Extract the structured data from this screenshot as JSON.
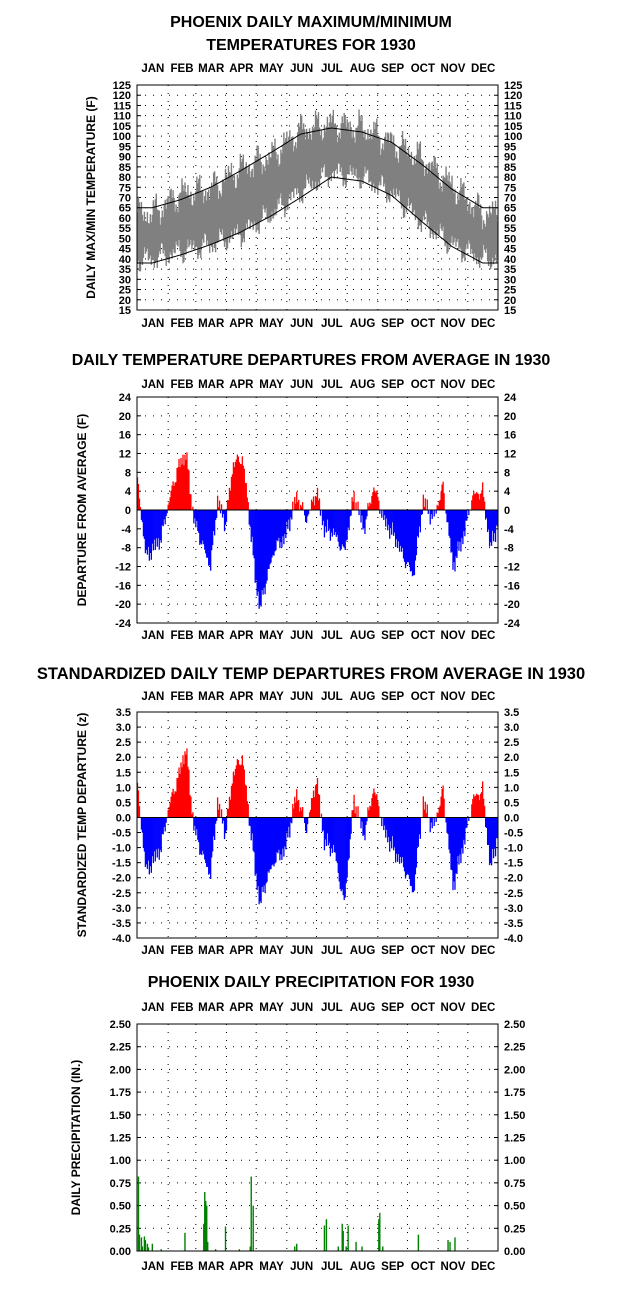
{
  "months": [
    "JAN",
    "FEB",
    "MAR",
    "APR",
    "MAY",
    "JUN",
    "JUL",
    "AUG",
    "SEP",
    "OCT",
    "NOV",
    "DEC"
  ],
  "chart_data": [
    {
      "type": "area",
      "title_lines": [
        "PHOENIX DAILY MAXIMUM/MINIMUM",
        "TEMPERATURES FOR 1930"
      ],
      "ylabel": "DAILY MAX/MIN TEMPERATURE  (F)",
      "ylim": [
        15,
        125
      ],
      "yticks": [
        "125",
        "120",
        "115",
        "110",
        "105",
        "100",
        "95",
        "90",
        "85",
        "80",
        "75",
        "70",
        "65",
        "60",
        "55",
        "50",
        "45",
        "40",
        "35",
        "30",
        "25",
        "20",
        "15"
      ],
      "grid": true,
      "colors": {
        "daily_range": "#808080",
        "normals": "#000000"
      },
      "normal_max_monthly": [
        65,
        69,
        75,
        83,
        92,
        101,
        104,
        102,
        97,
        86,
        74,
        65
      ],
      "normal_min_monthly": [
        38,
        42,
        47,
        53,
        61,
        70,
        80,
        78,
        71,
        58,
        46,
        38
      ],
      "daily_max_monthly": [
        62,
        72,
        74,
        84,
        90,
        103,
        106,
        104,
        97,
        89,
        76,
        62
      ],
      "daily_min_monthly": [
        40,
        44,
        47,
        52,
        62,
        73,
        82,
        80,
        72,
        58,
        47,
        40
      ]
    },
    {
      "type": "bar",
      "title": "DAILY TEMPERATURE DEPARTURES FROM AVERAGE IN 1930",
      "ylabel": "DEPARTURE FROM AVERAGE  (F)",
      "ylim": [
        -24,
        24
      ],
      "yticks": [
        "24",
        "20",
        "16",
        "12",
        "8",
        "4",
        "0",
        "-4",
        "-8",
        "-12",
        "-16",
        "-20",
        "-24"
      ],
      "grid": true,
      "colors": {
        "positive": "#ff0000",
        "negative": "#0000ff"
      },
      "anchors_day": [
        1,
        10,
        25,
        33,
        42,
        50,
        58,
        66,
        75,
        82,
        90,
        98,
        107,
        112,
        120,
        125,
        130,
        140,
        150,
        162,
        172,
        182,
        190,
        200,
        210,
        220,
        230,
        240,
        250,
        262,
        270,
        280,
        290,
        300,
        310,
        320,
        330,
        340,
        350,
        358,
        365
      ],
      "anchors_value": [
        6,
        -10,
        -6,
        2,
        9,
        12,
        -2,
        -7,
        -12,
        2,
        -3,
        10,
        11,
        3,
        -14,
        -21,
        -16,
        -8,
        -6,
        3,
        -2,
        4,
        -4,
        -5,
        -9,
        3,
        -4,
        5,
        -2,
        -6,
        -10,
        -14,
        2,
        -2,
        5,
        -12,
        -6,
        3,
        4,
        -8,
        -3
      ]
    },
    {
      "type": "bar",
      "title": "STANDARDIZED DAILY TEMP DEPARTURES FROM AVERAGE IN 1930",
      "ylabel": "STANDARDIZED TEMP DEPARTURE  (z)",
      "ylim": [
        -4.0,
        3.5
      ],
      "yticks": [
        "3.5",
        "3.0",
        "2.5",
        "2.0",
        "1.5",
        "1.0",
        "0.5",
        "0.0",
        "-0.5",
        "-1.0",
        "-1.5",
        "-2.0",
        "-2.5",
        "-3.0",
        "-3.5",
        "-4.0"
      ],
      "grid": true,
      "colors": {
        "positive": "#ff0000",
        "negative": "#0000ff"
      },
      "anchors_day": [
        1,
        10,
        25,
        33,
        42,
        50,
        58,
        66,
        75,
        82,
        90,
        98,
        107,
        112,
        120,
        125,
        130,
        140,
        150,
        162,
        172,
        182,
        190,
        200,
        210,
        220,
        230,
        240,
        250,
        262,
        270,
        280,
        290,
        300,
        310,
        320,
        330,
        340,
        350,
        358,
        365
      ],
      "anchors_value": [
        1.0,
        -1.8,
        -1.0,
        0.4,
        1.3,
        2.3,
        -0.3,
        -1.2,
        -1.9,
        0.5,
        -0.5,
        1.5,
        2.0,
        0.6,
        -1.7,
        -2.9,
        -2.2,
        -1.4,
        -1.1,
        0.8,
        -0.4,
        1.3,
        -0.8,
        -1.1,
        -2.9,
        0.6,
        -0.6,
        1.0,
        -0.4,
        -1.2,
        -1.6,
        -2.5,
        0.5,
        -0.4,
        0.9,
        -2.3,
        -1.0,
        0.6,
        0.9,
        -1.7,
        -0.6
      ]
    },
    {
      "type": "bar",
      "title": "PHOENIX DAILY PRECIPITATION FOR 1930",
      "ylabel": "DAILY PRECIPITATION (IN.)",
      "ylim": [
        0,
        2.5
      ],
      "yticks": [
        "2.50",
        "2.25",
        "2.00",
        "1.75",
        "1.50",
        "1.25",
        "1.00",
        "0.75",
        "0.50",
        "0.25",
        "0.00"
      ],
      "grid": true,
      "colors": {
        "bars": "#008000"
      },
      "x": [
        2,
        3,
        5,
        6,
        8,
        9,
        11,
        12,
        16,
        25,
        49,
        68,
        69,
        70,
        71,
        72,
        80,
        90,
        104,
        115,
        116,
        118,
        160,
        162,
        190,
        192,
        204,
        208,
        209,
        212,
        214,
        222,
        228,
        245,
        246,
        249,
        285,
        315,
        317,
        322
      ],
      "values": [
        0.82,
        0.18,
        0.15,
        0.05,
        0.16,
        0.12,
        0.08,
        0.04,
        0.08,
        0.02,
        0.2,
        0.3,
        0.65,
        0.55,
        0.5,
        0.1,
        0.02,
        0.27,
        0.02,
        0.05,
        0.82,
        0.5,
        0.05,
        0.08,
        0.28,
        0.35,
        0.05,
        0.3,
        0.22,
        0.05,
        0.28,
        0.1,
        0.05,
        0.35,
        0.42,
        0.05,
        0.18,
        0.12,
        0.1,
        0.15
      ]
    }
  ]
}
